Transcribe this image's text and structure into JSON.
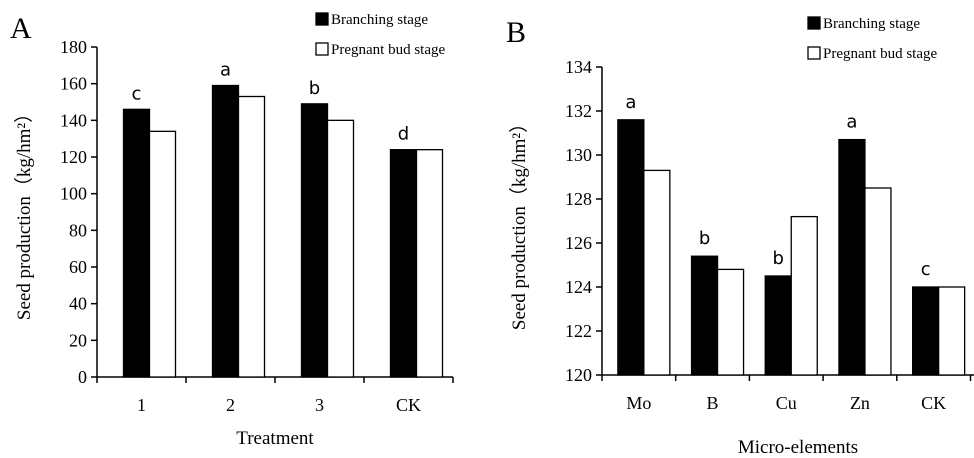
{
  "chart_data": [
    {
      "type": "bar",
      "panel": "A",
      "xlabel": "Treatment",
      "ylabel": "Seed production（kg/hm²）",
      "categories": [
        "1",
        "2",
        "3",
        "CK"
      ],
      "series": [
        {
          "name": "Branching stage",
          "values": [
            146,
            159,
            149,
            124
          ],
          "color": "#000000"
        },
        {
          "name": "Pregnant bud stage",
          "values": [
            134,
            153,
            140,
            124
          ],
          "color": "#ffffff"
        }
      ],
      "significance": [
        "c",
        "a",
        "b",
        "d"
      ],
      "ylim": [
        0,
        180
      ],
      "yticks": [
        "0",
        "20",
        "40",
        "60",
        "80",
        "100",
        "120",
        "140",
        "160",
        "180"
      ],
      "grid": false,
      "legend": "top-right"
    },
    {
      "type": "bar",
      "panel": "B",
      "xlabel": "Micro-elements",
      "ylabel": "Seed production（kg/hm²）",
      "categories": [
        "Mo",
        "B",
        "Cu",
        "Zn",
        "CK"
      ],
      "series": [
        {
          "name": "Branching stage",
          "values": [
            131.6,
            125.4,
            124.5,
            130.7,
            124.0
          ],
          "color": "#000000"
        },
        {
          "name": "Pregnant bud stage",
          "values": [
            129.3,
            124.8,
            127.2,
            128.5,
            124.0
          ],
          "color": "#ffffff"
        }
      ],
      "significance": [
        "a",
        "b",
        "b",
        "a",
        "c"
      ],
      "ylim": [
        120,
        134
      ],
      "yticks": [
        "120",
        "122",
        "124",
        "126",
        "128",
        "130",
        "132",
        "134"
      ],
      "grid": false,
      "legend": "top-right"
    }
  ]
}
